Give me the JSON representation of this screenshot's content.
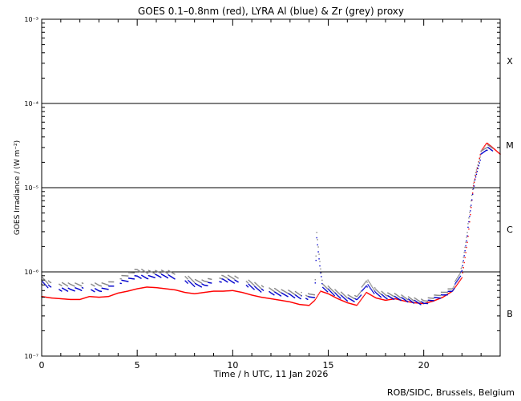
{
  "chart_data": {
    "type": "scatter",
    "title": "GOES 0.1–0.8nm (red), LYRA Al (blue) & Zr (grey) proxy",
    "xlabel": "Time / h UTC, 11 Jan 2026",
    "ylabel": "GOES Irradiance / (W m⁻²)",
    "xlim": [
      0,
      24
    ],
    "ylim": [
      1e-07,
      0.001
    ],
    "yscale": "log",
    "x_ticks": [
      0,
      5,
      10,
      15,
      20
    ],
    "y_ticks": [
      {
        "value": 1e-07,
        "label": "10⁻⁷"
      },
      {
        "value": 1e-06,
        "label": "10⁻⁶"
      },
      {
        "value": 1e-05,
        "label": "10⁻⁵"
      },
      {
        "value": 0.0001,
        "label": "10⁻⁴"
      },
      {
        "value": 0.001,
        "label": "10⁻³"
      }
    ],
    "class_lines": [
      1e-06,
      1e-05,
      0.0001
    ],
    "flare_classes": [
      {
        "label": "B",
        "level": 3.2e-07
      },
      {
        "label": "C",
        "level": 3.2e-06
      },
      {
        "label": "M",
        "level": 3.2e-05
      },
      {
        "label": "X",
        "level": 0.00032
      }
    ],
    "series": [
      {
        "color": "#ff0000",
        "points": [
          [
            0,
            5.1e-07
          ],
          [
            0.5,
            4.9e-07
          ],
          [
            1,
            4.8e-07
          ],
          [
            1.5,
            4.7e-07
          ],
          [
            2,
            4.7e-07
          ],
          [
            2.5,
            5.1e-07
          ],
          [
            3,
            5e-07
          ],
          [
            3.5,
            5.1e-07
          ],
          [
            4,
            5.6e-07
          ],
          [
            4.5,
            5.9e-07
          ],
          [
            5,
            6.3e-07
          ],
          [
            5.5,
            6.6e-07
          ],
          [
            6,
            6.5e-07
          ],
          [
            6.5,
            6.3e-07
          ],
          [
            7,
            6.1e-07
          ],
          [
            7.5,
            5.7e-07
          ],
          [
            8,
            5.5e-07
          ],
          [
            8.5,
            5.7e-07
          ],
          [
            9,
            5.9e-07
          ],
          [
            9.5,
            5.9e-07
          ],
          [
            10,
            6e-07
          ],
          [
            10.5,
            5.7e-07
          ],
          [
            11,
            5.3e-07
          ],
          [
            11.5,
            5e-07
          ],
          [
            12,
            4.8e-07
          ],
          [
            12.5,
            4.6e-07
          ],
          [
            13,
            4.4e-07
          ],
          [
            13.5,
            4.1e-07
          ],
          [
            14,
            4e-07
          ],
          [
            14.3,
            4.6e-07
          ],
          [
            14.6,
            5.9e-07
          ],
          [
            15,
            5.5e-07
          ],
          [
            15.5,
            4.8e-07
          ],
          [
            16,
            4.3e-07
          ],
          [
            16.5,
            4e-07
          ],
          [
            17,
            5.7e-07
          ],
          [
            17.5,
            4.9e-07
          ],
          [
            18,
            4.6e-07
          ],
          [
            18.5,
            4.8e-07
          ],
          [
            19,
            4.5e-07
          ],
          [
            19.5,
            4.3e-07
          ],
          [
            20,
            4.2e-07
          ],
          [
            20.5,
            4.5e-07
          ],
          [
            21,
            5e-07
          ],
          [
            21.5,
            5.9e-07
          ],
          [
            22,
            8.5e-07
          ],
          [
            22.3,
            2.4e-06
          ],
          [
            22.6,
            1.05e-05
          ],
          [
            23,
            2.7e-05
          ],
          [
            23.3,
            3.4e-05
          ],
          [
            23.6,
            3e-05
          ],
          [
            24,
            2.5e-05
          ]
        ]
      },
      {
        "color": "#0000cc",
        "points": [
          [
            0,
            7.5e-07
          ],
          [
            0.4,
            6.6e-07
          ],
          [
            1,
            6.2e-07
          ],
          [
            1.5,
            6.1e-07
          ],
          [
            2,
            6.3e-07
          ],
          [
            2.6,
            6.1e-07
          ],
          [
            3,
            6e-07
          ],
          [
            3.5,
            6.5e-07
          ],
          [
            4,
            7.4e-07
          ],
          [
            4.5,
            8e-07
          ],
          [
            5,
            8.8e-07
          ],
          [
            5.5,
            8.6e-07
          ],
          [
            6,
            9e-07
          ],
          [
            6.5,
            8.9e-07
          ],
          [
            7,
            8.6e-07
          ],
          [
            7.5,
            7.9e-07
          ],
          [
            8,
            7e-07
          ],
          [
            8.5,
            6.9e-07
          ],
          [
            9,
            7.5e-07
          ],
          [
            9.5,
            8e-07
          ],
          [
            10,
            7.7e-07
          ],
          [
            10.5,
            7.5e-07
          ],
          [
            11,
            6.6e-07
          ],
          [
            11.5,
            6e-07
          ],
          [
            12,
            5.6e-07
          ],
          [
            12.5,
            5.4e-07
          ],
          [
            13,
            5.3e-07
          ],
          [
            13.5,
            5e-07
          ],
          [
            14,
            4.9e-07
          ],
          [
            14.3,
            5.2e-07
          ],
          [
            14.4,
            2.5e-06
          ],
          [
            14.7,
            6.4e-07
          ],
          [
            15,
            6e-07
          ],
          [
            15.5,
            5.2e-07
          ],
          [
            16,
            4.7e-07
          ],
          [
            16.5,
            4.6e-07
          ],
          [
            17,
            7e-07
          ],
          [
            17.5,
            5.5e-07
          ],
          [
            18,
            5e-07
          ],
          [
            18.5,
            4.9e-07
          ],
          [
            19,
            4.7e-07
          ],
          [
            19.5,
            4.4e-07
          ],
          [
            20,
            4.2e-07
          ],
          [
            20.5,
            4.7e-07
          ],
          [
            21,
            5.2e-07
          ],
          [
            21.5,
            6e-07
          ],
          [
            22,
            1e-06
          ],
          [
            22.3,
            3e-06
          ],
          [
            22.6,
            1e-05
          ],
          [
            23,
            2.4e-05
          ],
          [
            23.3,
            2.9e-05
          ],
          [
            23.6,
            2.8e-05
          ]
        ]
      },
      {
        "color": "#888888",
        "points": [
          [
            0,
            8.4e-07
          ],
          [
            0.4,
            7.4e-07
          ],
          [
            1,
            7.2e-07
          ],
          [
            1.5,
            7e-07
          ],
          [
            2,
            7.1e-07
          ],
          [
            2.6,
            7.1e-07
          ],
          [
            3,
            7e-07
          ],
          [
            3.5,
            7.3e-07
          ],
          [
            4,
            8.3e-07
          ],
          [
            4.5,
            9.3e-07
          ],
          [
            5,
            1.05e-06
          ],
          [
            5.5,
            1e-06
          ],
          [
            6,
            1e-06
          ],
          [
            6.5,
            1e-06
          ],
          [
            7,
            9.8e-07
          ],
          [
            7.5,
            8.9e-07
          ],
          [
            8,
            7.8e-07
          ],
          [
            8.5,
            7.7e-07
          ],
          [
            9,
            8.3e-07
          ],
          [
            9.5,
            8.8e-07
          ],
          [
            10,
            8.6e-07
          ],
          [
            10.5,
            8.3e-07
          ],
          [
            11,
            7.4e-07
          ],
          [
            11.5,
            6.6e-07
          ],
          [
            12,
            6.2e-07
          ],
          [
            12.5,
            5.9e-07
          ],
          [
            13,
            5.8e-07
          ],
          [
            13.5,
            5.5e-07
          ],
          [
            14,
            5.3e-07
          ],
          [
            14.3,
            5.6e-07
          ],
          [
            14.4,
            2.9e-06
          ],
          [
            14.7,
            7e-07
          ],
          [
            15,
            6.5e-07
          ],
          [
            15.5,
            5.7e-07
          ],
          [
            16,
            5.1e-07
          ],
          [
            16.5,
            5e-07
          ],
          [
            17,
            8e-07
          ],
          [
            17.5,
            6e-07
          ],
          [
            18,
            5.4e-07
          ],
          [
            18.5,
            5.3e-07
          ],
          [
            19,
            5e-07
          ],
          [
            19.5,
            4.7e-07
          ],
          [
            20,
            4.5e-07
          ],
          [
            20.5,
            5e-07
          ],
          [
            21,
            5.6e-07
          ],
          [
            21.5,
            6.4e-07
          ],
          [
            22,
            1.1e-06
          ],
          [
            22.3,
            3.3e-06
          ],
          [
            22.6,
            1.15e-05
          ],
          [
            23,
            2.6e-05
          ],
          [
            23.3,
            3.1e-05
          ],
          [
            23.6,
            3e-05
          ]
        ]
      }
    ],
    "gaps": [
      [
        0.5,
        0.9
      ],
      [
        2.2,
        2.6
      ],
      [
        3.8,
        4.1
      ],
      [
        7.0,
        7.5
      ],
      [
        8.9,
        9.3
      ],
      [
        10.3,
        10.7
      ],
      [
        11.6,
        11.9
      ],
      [
        13.6,
        13.8
      ]
    ]
  },
  "footer": "ROB/SIDC, Brussels, Belgium"
}
